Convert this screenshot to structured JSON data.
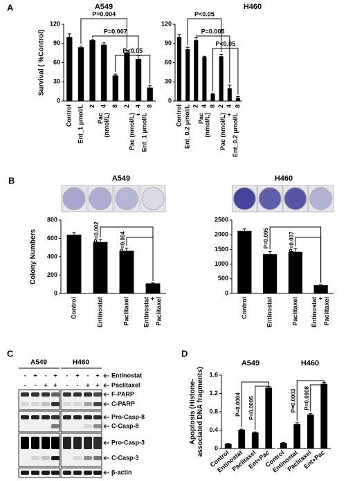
{
  "panels": [
    "A",
    "B",
    "C",
    "D"
  ],
  "chart_data": [
    {
      "type": "bar",
      "title": "A549",
      "ylabel": "Survival ( %Control)",
      "color": "#000000",
      "categories": [
        "Control",
        "Ent_1 μmol/L",
        "2",
        "4",
        "8",
        "2",
        "4",
        "8"
      ],
      "group_labels": [
        [
          "Pac",
          "(nmol/L)"
        ],
        [
          "Pac (nmol/L)",
          "+",
          "Ent_1 μmol/L"
        ]
      ],
      "values": [
        100,
        84,
        95,
        88,
        40,
        76,
        66,
        21
      ],
      "errors": [
        5,
        2,
        1,
        3,
        2,
        3,
        5,
        3
      ],
      "ylim": [
        0,
        120
      ],
      "yticks": [
        0,
        30,
        60,
        90,
        120
      ],
      "annotations": [
        "P=0.004",
        "P=0.007",
        "P<0.05"
      ]
    },
    {
      "type": "bar",
      "title": "H460",
      "color": "#000000",
      "categories": [
        "Control",
        "Ent_0.2 μmol/L",
        "2",
        "4",
        "8",
        "2",
        "4",
        "8"
      ],
      "group_labels": [
        [
          "Pac",
          "(nmol/L)"
        ],
        [
          "Pac (nmol/L)",
          "+",
          "Ent_0.2 μmol/L"
        ]
      ],
      "values": [
        100,
        81,
        95,
        69,
        11,
        70,
        20,
        5
      ],
      "errors": [
        4,
        3,
        4,
        1,
        1,
        3,
        5,
        2
      ],
      "ylim": [
        0,
        120
      ],
      "yticks": [
        0,
        30,
        60,
        90,
        120
      ],
      "annotations": [
        "P<0.05",
        "P=0.005",
        "P<0.05"
      ]
    },
    {
      "type": "bar",
      "title": "A549",
      "ylabel": "Colony Numbers",
      "color": "#000000",
      "categories": [
        "Control",
        "Entinostat",
        "Paclitaxel",
        [
          "Entinostat",
          "+",
          "Paclitaxel"
        ]
      ],
      "values": [
        640,
        560,
        465,
        110
      ],
      "errors": [
        25,
        30,
        30,
        5
      ],
      "ylim": [
        0,
        800
      ],
      "yticks": [
        0,
        200,
        400,
        600,
        800
      ],
      "annotations": [
        "P=0.002",
        "P=0.004"
      ]
    },
    {
      "type": "bar",
      "title": "H460",
      "color": "#000000",
      "categories": [
        "Control",
        "Entinostat",
        "Paclitaxel",
        [
          "Entinostat",
          "+",
          "Paclitaxel"
        ]
      ],
      "values": [
        2130,
        1340,
        1420,
        280
      ],
      "errors": [
        70,
        90,
        110,
        15
      ],
      "ylim": [
        0,
        2500
      ],
      "yticks": [
        0,
        500,
        1000,
        1500,
        2000,
        2500
      ],
      "annotations": [
        "P=0.005",
        "P=0.007"
      ]
    },
    {
      "type": "bar",
      "title": "A549",
      "ylabel": [
        "Apoptosis (Histone-",
        "associated DNA fragments)"
      ],
      "color": "#000000",
      "categories": [
        "Control",
        "Entinostat",
        "Paclitaxel",
        "Ent+Pac"
      ],
      "values": [
        0.1,
        0.41,
        0.35,
        1.33
      ],
      "errors": [
        0.01,
        0.01,
        0.01,
        0.02
      ],
      "ylim": [
        0,
        1.6
      ],
      "yticks": [
        0,
        0.4,
        0.8,
        1.2,
        1.6
      ],
      "annotations": [
        "P=0.0004",
        "P=0.0005"
      ]
    },
    {
      "type": "bar",
      "title": "H460",
      "color": "#000000",
      "categories": [
        "Control",
        "Entinostat",
        "Paclitaxel",
        "Ent+Pac"
      ],
      "values": [
        0.12,
        0.53,
        0.74,
        1.41
      ],
      "errors": [
        0.01,
        0.03,
        0.02,
        0.03
      ],
      "ylim": [
        0,
        1.6
      ],
      "annotations": [
        "P=0.0003",
        "P=0.0008"
      ]
    }
  ],
  "blot": {
    "cell_lines": [
      "A549",
      "H460"
    ],
    "treatments": [
      {
        "name": "Entinostat",
        "signs": [
          "-",
          "+",
          "-",
          "+",
          "-",
          "+",
          "-",
          "+"
        ]
      },
      {
        "name": "Paclitaxel",
        "signs": [
          "-",
          "-",
          "+",
          "+",
          "-",
          "-",
          "+",
          "+"
        ]
      }
    ],
    "bands": [
      "F-PARP",
      "C-PARP",
      "Pro-Casp-8",
      "C-Casp-8",
      "Pro-Casp-3",
      "C-Casp-3",
      "β-actin"
    ]
  }
}
